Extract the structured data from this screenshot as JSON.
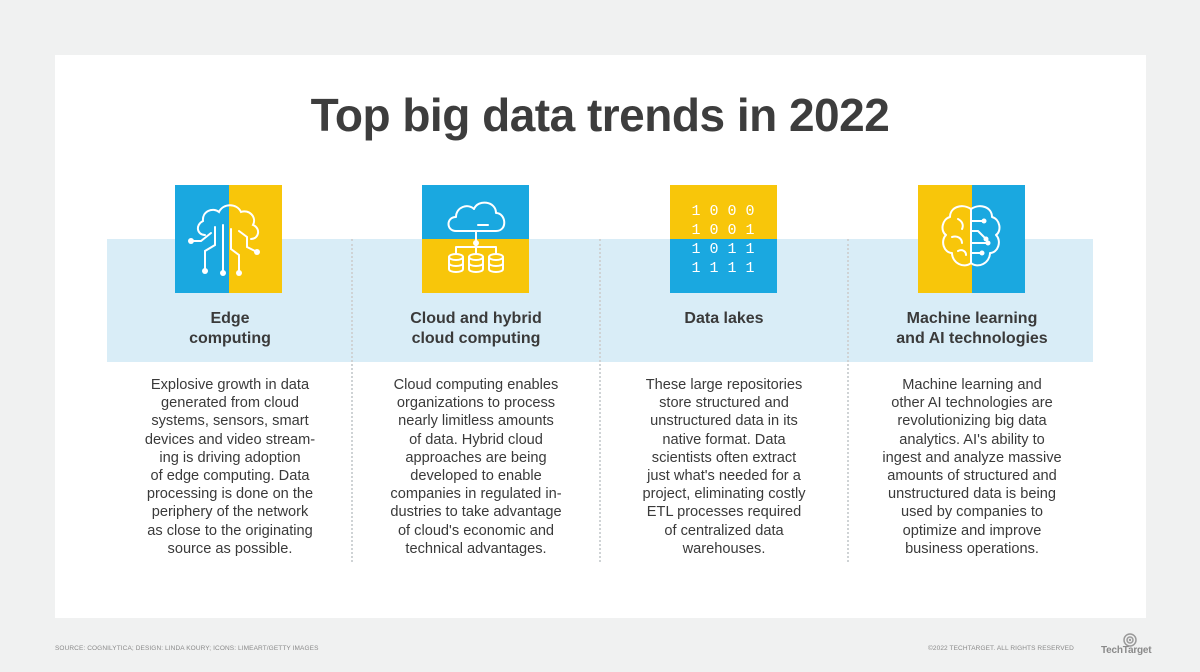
{
  "title": "Top big data trends in 2022",
  "colors": {
    "blue": "#1aa8e0",
    "yellow": "#f8c60a",
    "band": "#d9edf7",
    "text": "#3a3a3a",
    "background": "#f0f1f1"
  },
  "trends": [
    {
      "icon": "brain-circuit-icon",
      "title": "Edge\ncomputing",
      "text": "Explosive growth in data\ngenerated from cloud\nsystems, sensors, smart\ndevices and video stream-\ning is driving adoption\nof edge computing. Data\nprocessing is done on the\nperiphery of the network\nas close to the originating\nsource as possible."
    },
    {
      "icon": "cloud-network-icon",
      "title": "Cloud and hybrid\ncloud computing",
      "text": "Cloud computing enables\norganizations to process\nnearly limitless amounts\nof data. Hybrid cloud\napproaches are being\ndeveloped to enable\ncompanies in regulated in-\ndustries to take advantage\nof cloud's economic and\ntechnical advantages."
    },
    {
      "icon": "binary-data-icon",
      "title": "Data lakes",
      "text": "These large repositories\nstore structured and\nunstructured data in its\nnative format. Data\nscientists often extract\njust what's needed for a\nproject, eliminating costly\nETL processes required\nof centralized data\nwarehouses.",
      "binary_rows": [
        "1 0 0 0",
        "1 0 0 1",
        "1 0 1 1",
        "1 1 1 1"
      ]
    },
    {
      "icon": "ai-brain-icon",
      "title": "Machine learning\nand AI technologies",
      "text": "Machine learning and\nother AI technologies are\nrevolutionizing big data\nanalytics. AI's ability to\ningest and analyze massive\namounts of structured and\nunstructured data is being\nused by companies to\noptimize and improve\nbusiness operations."
    }
  ],
  "footer": {
    "source": "SOURCE: COGNILYTICA; DESIGN: LINDA KOURY; ICONS: LIMEART/GETTY IMAGES",
    "copyright": "©2022 TECHTARGET. ALL RIGHTS RESERVED",
    "brand": "TechTarget"
  }
}
